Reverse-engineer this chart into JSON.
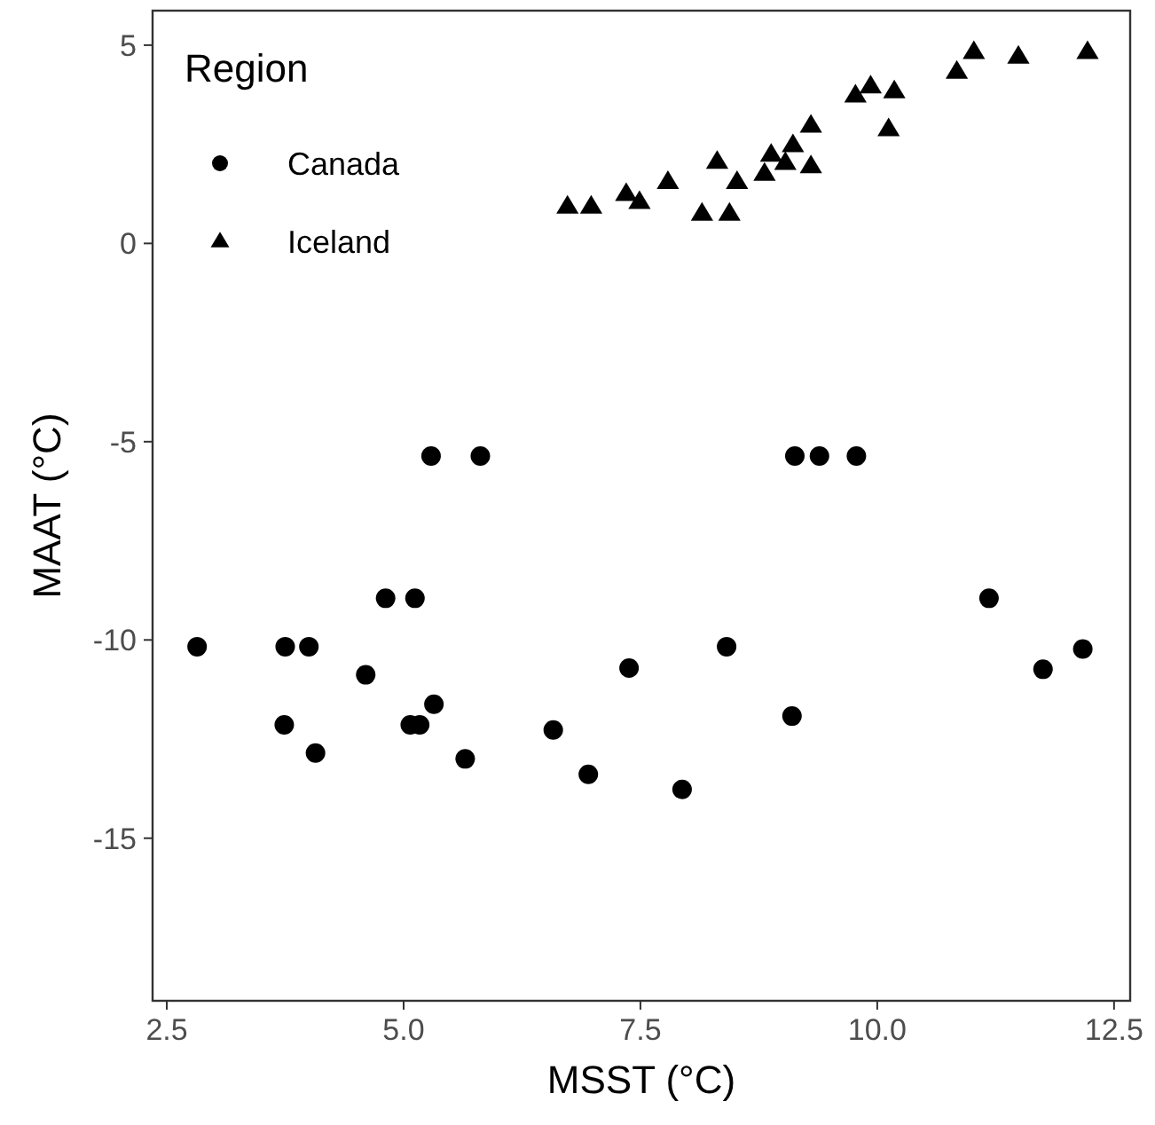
{
  "chart_data": {
    "type": "scatter",
    "xlabel": "MSST (°C)",
    "ylabel": "MAAT (°C)",
    "legend_title": "Region",
    "legend": "top left",
    "grid": false,
    "xlim": [
      2.35,
      12.67
    ],
    "ylim": [
      -19.1,
      5.87
    ],
    "xticks": [
      {
        "value": 2.5,
        "label": "2.5"
      },
      {
        "value": 5,
        "label": "5.0"
      },
      {
        "value": 7.5,
        "label": "7.5"
      },
      {
        "value": 10,
        "label": "10.0"
      },
      {
        "value": 12.5,
        "label": "12.5"
      }
    ],
    "yticks": [
      -15,
      -10,
      -5,
      0,
      5
    ],
    "series": [
      {
        "name": "Canada",
        "color": "#000000",
        "marker": "circle",
        "x": [
          2.82,
          3.75,
          4.0,
          4.81,
          5.12,
          4.6,
          5.32,
          3.74,
          5.07,
          5.17,
          4.07,
          5.65,
          6.58,
          6.95,
          7.38,
          7.94,
          8.41,
          9.1,
          11.18,
          11.75,
          12.17,
          5.29,
          5.81,
          9.13,
          9.39,
          9.78
        ],
        "values": [
          -10.17,
          -10.17,
          -10.17,
          -8.95,
          -8.95,
          -10.88,
          -11.62,
          -12.14,
          -12.14,
          -12.14,
          -12.85,
          -13.0,
          -12.27,
          -13.39,
          -10.71,
          -13.77,
          -10.17,
          -11.92,
          -8.95,
          -10.74,
          -10.23,
          -5.36,
          -5.36,
          -5.36,
          -5.36,
          -5.36
        ]
      },
      {
        "name": "Iceland",
        "color": "#000000",
        "marker": "triangle",
        "x": [
          6.73,
          6.98,
          7.35,
          7.49,
          7.79,
          8.15,
          8.44,
          8.31,
          8.52,
          8.81,
          8.88,
          9.03,
          9.11,
          9.3,
          9.3,
          9.77,
          9.93,
          10.18,
          10.12,
          10.84,
          11.02,
          11.49,
          12.22
        ],
        "values": [
          0.93,
          0.93,
          1.25,
          1.05,
          1.55,
          0.75,
          0.75,
          2.06,
          1.55,
          1.76,
          2.24,
          2.03,
          2.48,
          1.95,
          2.97,
          3.73,
          3.96,
          3.84,
          2.88,
          4.33,
          4.83,
          4.71,
          4.83
        ]
      }
    ]
  }
}
